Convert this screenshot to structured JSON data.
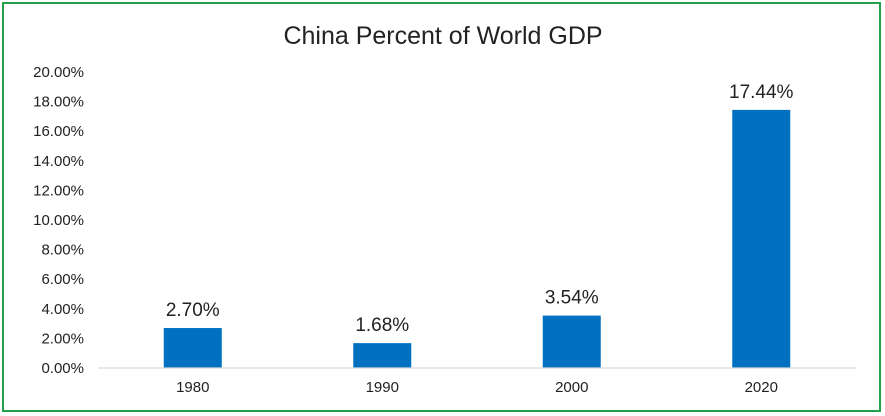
{
  "chart_data": {
    "type": "bar",
    "title": "China Percent of World GDP",
    "xlabel": "",
    "ylabel": "",
    "categories": [
      "1980",
      "1990",
      "2000",
      "2020"
    ],
    "values": [
      2.7,
      1.68,
      3.54,
      17.44
    ],
    "data_labels": [
      "2.70%",
      "1.68%",
      "3.54%",
      "17.44%"
    ],
    "ylim": [
      0,
      20
    ],
    "yticks": [
      0,
      2,
      4,
      6,
      8,
      10,
      12,
      14,
      16,
      18,
      20
    ],
    "ytick_labels": [
      "0.00%",
      "2.00%",
      "4.00%",
      "6.00%",
      "8.00%",
      "10.00%",
      "12.00%",
      "14.00%",
      "16.00%",
      "18.00%",
      "20.00%"
    ],
    "grid": false,
    "legend": "none",
    "colors": {
      "bar": "#0070c0",
      "border": "#22a04b",
      "axis": "#d9d9d9"
    }
  }
}
